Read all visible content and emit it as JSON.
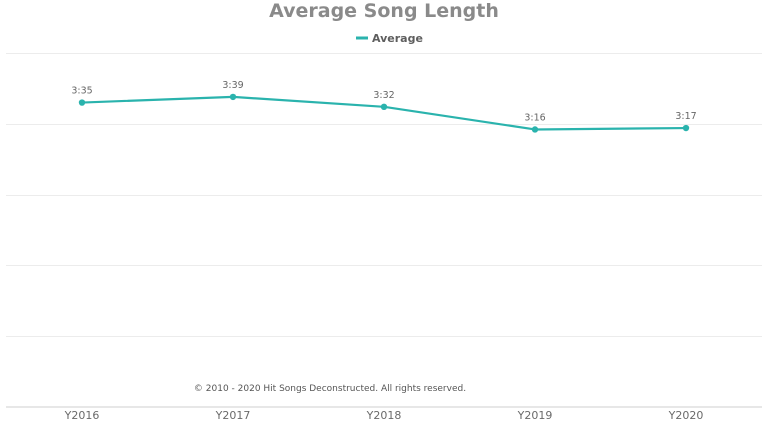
{
  "chart_data": {
    "type": "line",
    "title": "Average Song Length",
    "legend_position": "top-center",
    "grid": true,
    "categories": [
      "Y2016",
      "Y2017",
      "Y2018",
      "Y2019",
      "Y2020"
    ],
    "series": [
      {
        "name": "Average",
        "color": "#2ab3ad",
        "values_seconds": [
          215,
          219,
          212,
          196,
          197
        ],
        "labels": [
          "3:35",
          "3:39",
          "3:32",
          "3:16",
          "3:17"
        ]
      }
    ],
    "ylim_seconds": [
      0,
      250
    ],
    "ygrid_step_seconds": 50
  },
  "credit": "© 2010 - 2020 Hit Songs Deconstructed. All rights reserved."
}
